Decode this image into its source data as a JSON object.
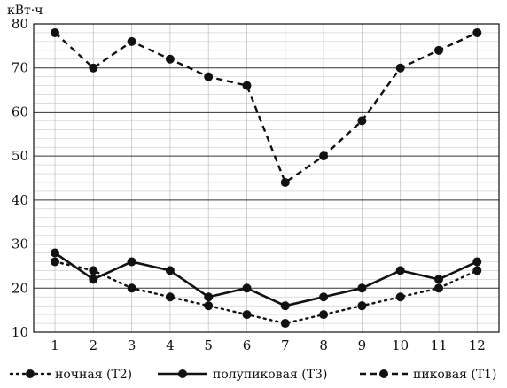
{
  "chart_data": {
    "type": "line",
    "title": "",
    "xlabel": "",
    "ylabel": "кВт·ч",
    "categories": [
      "1",
      "2",
      "3",
      "4",
      "5",
      "6",
      "7",
      "8",
      "9",
      "10",
      "11",
      "12"
    ],
    "ylim": [
      10,
      80
    ],
    "yticks": [
      10,
      20,
      30,
      40,
      50,
      60,
      70,
      80
    ],
    "grid": true,
    "legend_position": "bottom",
    "series": [
      {
        "name": "ночная (T2)",
        "line_style": "dotted",
        "color": "#111111",
        "values": [
          26,
          24,
          20,
          18,
          16,
          14,
          12,
          14,
          16,
          18,
          20,
          24
        ]
      },
      {
        "name": "полупиковая (T3)",
        "line_style": "solid",
        "color": "#111111",
        "values": [
          28,
          22,
          26,
          24,
          18,
          20,
          16,
          18,
          20,
          24,
          22,
          26
        ]
      },
      {
        "name": "пиковая (T1)",
        "line_style": "dashed",
        "color": "#111111",
        "values": [
          78,
          70,
          76,
          72,
          68,
          66,
          44,
          50,
          58,
          70,
          74,
          78
        ]
      }
    ]
  }
}
